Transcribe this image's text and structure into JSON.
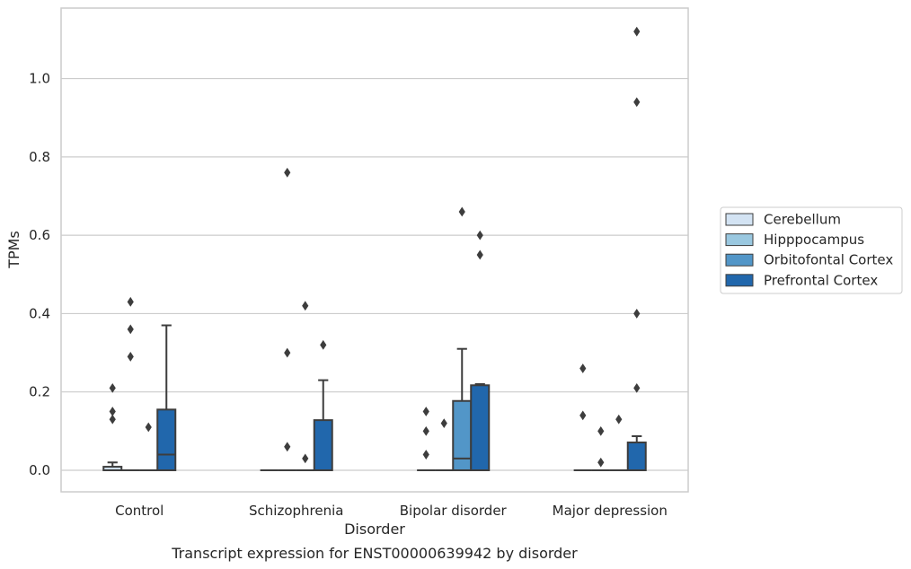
{
  "chart_data": {
    "type": "box",
    "caption": "Transcript expression for ENST00000639942 by disorder",
    "xlabel": "Disorder",
    "ylabel": "TPMs",
    "ylim": [
      -0.055,
      1.18
    ],
    "yticks": [
      0.0,
      0.2,
      0.4,
      0.6,
      0.8,
      1.0
    ],
    "ytick_labels": [
      "0.0",
      "0.2",
      "0.4",
      "0.6",
      "0.8",
      "1.0"
    ],
    "grid": "horizontal",
    "legend_position": "right",
    "categories": [
      "Control",
      "Schizophrenia",
      "Bipolar disorder",
      "Major depression"
    ],
    "series": [
      {
        "name": "Cerebellum",
        "color": "#d3e3f3",
        "boxes": [
          {
            "q1": 0.0,
            "median": 0.0,
            "q3": 0.009,
            "whisker_low": 0.0,
            "whisker_high": 0.02,
            "outliers": [
              0.13,
              0.15,
              0.21
            ]
          },
          {
            "q1": 0.0,
            "median": 0.0,
            "q3": 0.0,
            "whisker_low": 0.0,
            "whisker_high": 0.0,
            "outliers": []
          },
          {
            "q1": 0.0,
            "median": 0.0,
            "q3": 0.0,
            "whisker_low": 0.0,
            "whisker_high": 0.0,
            "outliers": [
              0.04,
              0.1,
              0.15
            ]
          },
          {
            "q1": 0.0,
            "median": 0.0,
            "q3": 0.0,
            "whisker_low": 0.0,
            "whisker_high": 0.0,
            "outliers": [
              0.14,
              0.26
            ]
          }
        ]
      },
      {
        "name": "Hipppocampus",
        "color": "#9ac8e0",
        "boxes": [
          {
            "q1": 0.0,
            "median": 0.0,
            "q3": 0.0,
            "whisker_low": 0.0,
            "whisker_high": 0.0,
            "outliers": [
              0.29,
              0.36,
              0.43
            ]
          },
          {
            "q1": 0.0,
            "median": 0.0,
            "q3": 0.0,
            "whisker_low": 0.0,
            "whisker_high": 0.0,
            "outliers": [
              0.06,
              0.3,
              0.76
            ]
          },
          {
            "q1": 0.0,
            "median": 0.0,
            "q3": 0.0,
            "whisker_low": 0.0,
            "whisker_high": 0.0,
            "outliers": [
              0.12
            ]
          },
          {
            "q1": 0.0,
            "median": 0.0,
            "q3": 0.0,
            "whisker_low": 0.0,
            "whisker_high": 0.0,
            "outliers": [
              0.02,
              0.1
            ]
          }
        ]
      },
      {
        "name": "Orbitofontal Cortex",
        "color": "#5296c8",
        "boxes": [
          {
            "q1": 0.0,
            "median": 0.0,
            "q3": 0.0,
            "whisker_low": 0.0,
            "whisker_high": 0.0,
            "outliers": [
              0.11
            ]
          },
          {
            "q1": 0.0,
            "median": 0.0,
            "q3": 0.0,
            "whisker_low": 0.0,
            "whisker_high": 0.0,
            "outliers": [
              0.03,
              0.42
            ]
          },
          {
            "q1": 0.0,
            "median": 0.03,
            "q3": 0.177,
            "whisker_low": 0.0,
            "whisker_high": 0.31,
            "outliers": [
              0.66
            ]
          },
          {
            "q1": 0.0,
            "median": 0.0,
            "q3": 0.0,
            "whisker_low": 0.0,
            "whisker_high": 0.0,
            "outliers": [
              0.13
            ]
          }
        ]
      },
      {
        "name": "Prefrontal Cortex",
        "color": "#2167ac",
        "boxes": [
          {
            "q1": 0.0,
            "median": 0.04,
            "q3": 0.155,
            "whisker_low": 0.0,
            "whisker_high": 0.37,
            "outliers": []
          },
          {
            "q1": 0.0,
            "median": 0.0,
            "q3": 0.128,
            "whisker_low": 0.0,
            "whisker_high": 0.23,
            "outliers": [
              0.32
            ]
          },
          {
            "q1": 0.0,
            "median": 0.0,
            "q3": 0.217,
            "whisker_low": 0.0,
            "whisker_high": 0.22,
            "outliers": [
              0.55,
              0.6
            ]
          },
          {
            "q1": 0.0,
            "median": 0.0,
            "q3": 0.071,
            "whisker_low": 0.0,
            "whisker_high": 0.087,
            "outliers": [
              0.21,
              0.4,
              0.94,
              1.12
            ]
          }
        ]
      }
    ]
  }
}
